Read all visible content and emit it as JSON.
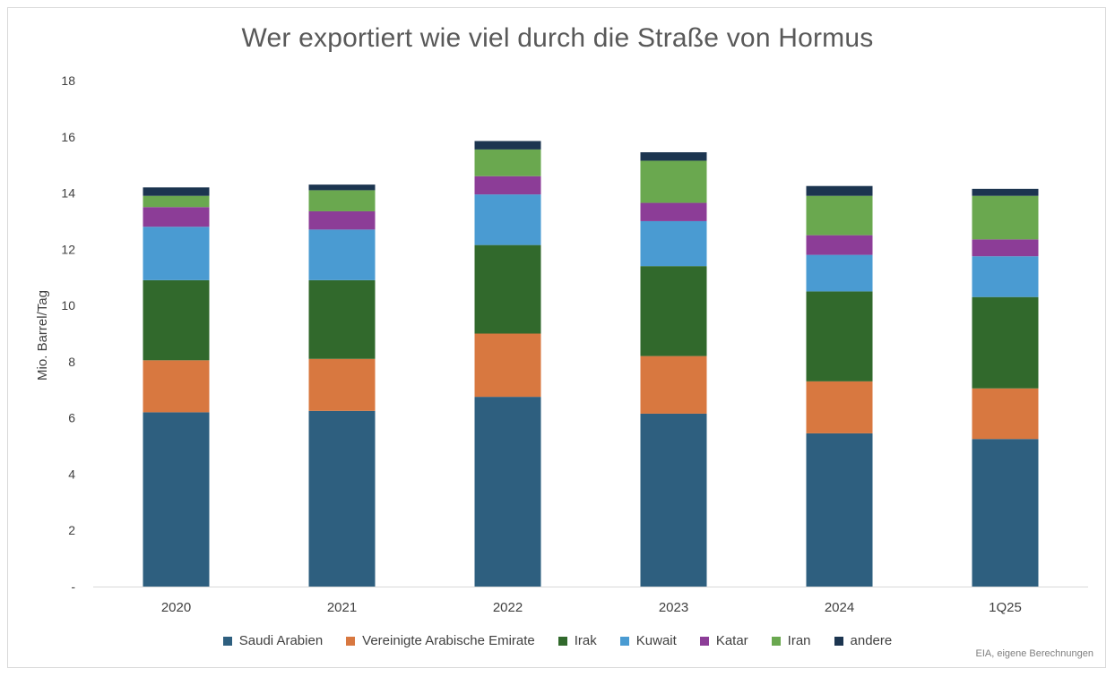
{
  "chart_data": {
    "type": "bar",
    "stacked": true,
    "title": "Wer exportiert wie viel durch die Straße von Hormus",
    "ylabel": "Mio. Barrel/Tag",
    "xlabel": "",
    "ylim": [
      0,
      18
    ],
    "y_ticks": [
      "-",
      "2",
      "4",
      "6",
      "8",
      "10",
      "12",
      "14",
      "16",
      "18"
    ],
    "grid": false,
    "legend_position": "bottom",
    "categories": [
      "2020",
      "2021",
      "2022",
      "2023",
      "2024",
      "1Q25"
    ],
    "series": [
      {
        "name": "Saudi Arabien",
        "color": "#2e5f7f",
        "values": [
          6.2,
          6.25,
          6.75,
          6.15,
          5.45,
          5.25
        ]
      },
      {
        "name": "Vereinigte Arabische Emirate",
        "color": "#d87840",
        "values": [
          1.85,
          1.85,
          2.25,
          2.05,
          1.85,
          1.8
        ]
      },
      {
        "name": "Irak",
        "color": "#31692c",
        "values": [
          2.85,
          2.8,
          3.15,
          3.2,
          3.2,
          3.25
        ]
      },
      {
        "name": "Kuwait",
        "color": "#4a9bd2",
        "values": [
          1.9,
          1.8,
          1.8,
          1.6,
          1.3,
          1.45
        ]
      },
      {
        "name": "Katar",
        "color": "#8c3d97",
        "values": [
          0.7,
          0.65,
          0.65,
          0.65,
          0.7,
          0.6
        ]
      },
      {
        "name": "Iran",
        "color": "#6aa84f",
        "values": [
          0.4,
          0.75,
          0.95,
          1.5,
          1.4,
          1.55
        ]
      },
      {
        "name": "andere",
        "color": "#1c3550",
        "values": [
          0.3,
          0.2,
          0.3,
          0.3,
          0.35,
          0.25
        ]
      }
    ]
  },
  "source_note": "EIA, eigene Berechnungen"
}
